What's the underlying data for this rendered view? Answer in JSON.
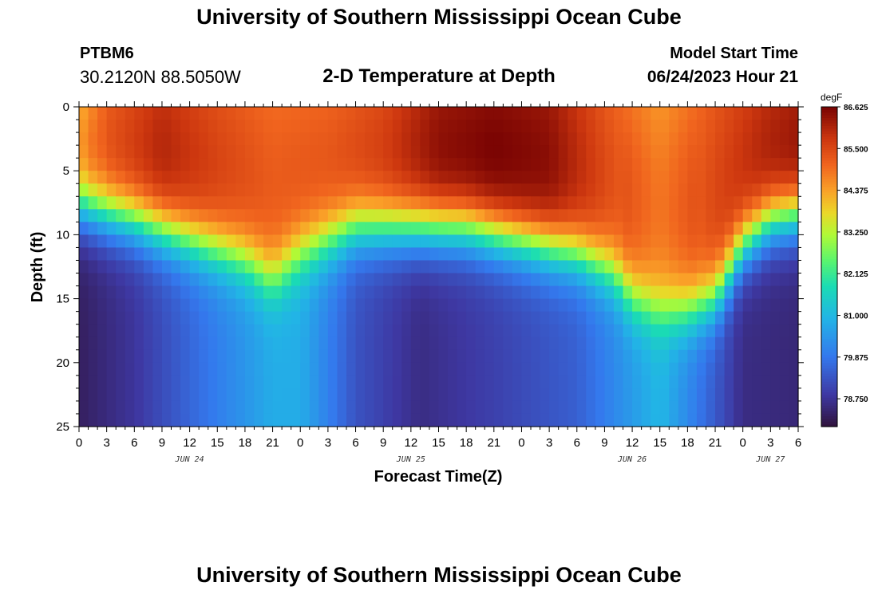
{
  "header": {
    "title": "University of Southern Mississippi Ocean Cube",
    "station_id": "PTBM6",
    "coordinates": "30.2120N  88.5050W",
    "subtitle": "2-D Temperature at Depth",
    "model_label": "Model Start Time",
    "model_time": "06/24/2023 Hour 21"
  },
  "footer": {
    "title": "University of Southern Mississippi Ocean Cube"
  },
  "chart_data": {
    "type": "heatmap",
    "title": "2-D Temperature at Depth",
    "xlabel": "Forecast Time(Z)",
    "ylabel": "Depth (ft)",
    "x_range_hours": [
      0,
      78
    ],
    "y_range_ft": [
      0,
      25
    ],
    "y_ticks": [
      "0",
      "5",
      "10",
      "15",
      "20",
      "25"
    ],
    "y_tick_values": [
      0,
      5,
      10,
      15,
      20,
      25
    ],
    "x_tick_labels": [
      "0",
      "3",
      "6",
      "9",
      "12",
      "15",
      "18",
      "21",
      "0",
      "3",
      "6",
      "9",
      "12",
      "15",
      "18",
      "21",
      "0",
      "3",
      "6",
      "9",
      "12",
      "15",
      "18",
      "21",
      "0",
      "3",
      "6"
    ],
    "date_labels": [
      {
        "label": "JUN 24",
        "hour": 12
      },
      {
        "label": "JUN 25",
        "hour": 36
      },
      {
        "label": "JUN 26",
        "hour": 60
      },
      {
        "label": "JUN 27",
        "hour": 75
      }
    ],
    "colorbar": {
      "unit": "degF",
      "min": 78.0,
      "max": 86.625,
      "labels": [
        "86.625",
        "85.500",
        "84.375",
        "83.250",
        "82.125",
        "81.000",
        "79.875",
        "78.750"
      ],
      "label_values": [
        86.625,
        85.5,
        84.375,
        83.25,
        82.125,
        81.0,
        79.875,
        78.75
      ]
    },
    "field_description": {
      "thermocline_depth_ft": [
        {
          "hour": 0,
          "depth": 8
        },
        {
          "hour": 6,
          "depth": 9
        },
        {
          "hour": 12,
          "depth": 10.5
        },
        {
          "hour": 18,
          "depth": 12
        },
        {
          "hour": 21,
          "depth": 13.5
        },
        {
          "hour": 24,
          "depth": 11.5
        },
        {
          "hour": 30,
          "depth": 9.5
        },
        {
          "hour": 36,
          "depth": 9.5
        },
        {
          "hour": 42,
          "depth": 9.5
        },
        {
          "hour": 48,
          "depth": 10.5
        },
        {
          "hour": 54,
          "depth": 11.5
        },
        {
          "hour": 58,
          "depth": 13
        },
        {
          "hour": 60,
          "depth": 15
        },
        {
          "hour": 63,
          "depth": 16
        },
        {
          "hour": 66,
          "depth": 16
        },
        {
          "hour": 69,
          "depth": 15
        },
        {
          "hour": 72,
          "depth": 11
        },
        {
          "hour": 75,
          "depth": 9
        },
        {
          "hour": 78,
          "depth": 8.5
        }
      ],
      "surface_temp_degF": [
        {
          "hour": 0,
          "temp": 84.2
        },
        {
          "hour": 3,
          "temp": 85.2
        },
        {
          "hour": 9,
          "temp": 85.9
        },
        {
          "hour": 15,
          "temp": 85.4
        },
        {
          "hour": 21,
          "temp": 85.0
        },
        {
          "hour": 27,
          "temp": 85.1
        },
        {
          "hour": 33,
          "temp": 85.5
        },
        {
          "hour": 39,
          "temp": 86.3
        },
        {
          "hour": 45,
          "temp": 86.5
        },
        {
          "hour": 51,
          "temp": 86.3
        },
        {
          "hour": 57,
          "temp": 85.3
        },
        {
          "hour": 63,
          "temp": 84.5
        },
        {
          "hour": 69,
          "temp": 85.3
        },
        {
          "hour": 75,
          "temp": 86.0
        },
        {
          "hour": 78,
          "temp": 86.2
        }
      ],
      "bottom_temp_degF": [
        {
          "hour": 0,
          "temp": 78.3
        },
        {
          "hour": 6,
          "temp": 78.8
        },
        {
          "hour": 12,
          "temp": 79.6
        },
        {
          "hour": 21,
          "temp": 80.8
        },
        {
          "hour": 24,
          "temp": 80.8
        },
        {
          "hour": 30,
          "temp": 79.3
        },
        {
          "hour": 37,
          "temp": 78.6
        },
        {
          "hour": 45,
          "temp": 79.0
        },
        {
          "hour": 54,
          "temp": 79.5
        },
        {
          "hour": 60,
          "temp": 80.5
        },
        {
          "hour": 63,
          "temp": 81.0
        },
        {
          "hour": 66,
          "temp": 80.2
        },
        {
          "hour": 72,
          "temp": 78.6
        },
        {
          "hour": 78,
          "temp": 78.5
        }
      ]
    }
  }
}
